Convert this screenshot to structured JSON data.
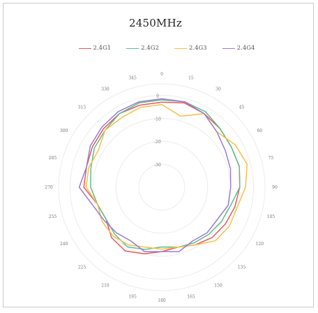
{
  "chart_data": {
    "type": "radar",
    "title": "2450MHz",
    "angles": [
      0,
      15,
      30,
      45,
      60,
      75,
      90,
      105,
      120,
      135,
      150,
      165,
      180,
      195,
      210,
      225,
      240,
      255,
      270,
      285,
      300,
      315,
      330,
      345
    ],
    "angle_labels": [
      "0",
      "15",
      "30",
      "45",
      "60",
      "75",
      "90",
      "105",
      "120",
      "135",
      "150",
      "165",
      "180",
      "195",
      "210",
      "225",
      "240",
      "255",
      "270",
      "285",
      "300",
      "315",
      "330",
      "345"
    ],
    "radial_ticks": [
      0,
      -10,
      -20,
      -30
    ],
    "radial_labels": [
      "0",
      "-10",
      "-20",
      "-30"
    ],
    "rlim": [
      -40,
      5
    ],
    "grid": true,
    "legend_position": "top",
    "series": [
      {
        "name": "2.4G1",
        "color": "#e8585f",
        "values": [
          -3,
          -2,
          -3,
          -4,
          -5,
          -5,
          -6,
          -7,
          -8,
          -9,
          -11,
          -13,
          -12,
          -10,
          -8,
          -9,
          -12,
          -11,
          -6,
          -6,
          -5,
          -4,
          -3,
          -3
        ]
      },
      {
        "name": "2.4G2",
        "color": "#5dbf8a",
        "values": [
          -2,
          -1.5,
          -2,
          -4,
          -5,
          -5,
          -6,
          -9,
          -10,
          -11,
          -12,
          -13,
          -14,
          -12,
          -10,
          -11,
          -12,
          -11,
          -9,
          -8,
          -6,
          -5,
          -3,
          -2
        ]
      },
      {
        "name": "2.4G3",
        "color": "#f5c04a",
        "values": [
          -4,
          -8,
          -3,
          -6,
          -3,
          -1.5,
          -3.5,
          -6,
          -6,
          -7,
          -11,
          -13,
          -13,
          -13,
          -11,
          -10,
          -10,
          -11,
          -7,
          -7,
          -8,
          -5,
          -5,
          -4
        ]
      },
      {
        "name": "2.4G4",
        "color": "#9b7bd2",
        "values": [
          -1.5,
          -1.5,
          -3,
          -6,
          -8,
          -9,
          -10,
          -10,
          -12,
          -12,
          -13,
          -11,
          -12,
          -11,
          -13,
          -12,
          -11,
          -9,
          -4,
          -6,
          -4,
          -3,
          -2,
          -1.5
        ]
      }
    ]
  },
  "colors": {
    "grid": "#ececec",
    "tick_text": "#777777"
  }
}
